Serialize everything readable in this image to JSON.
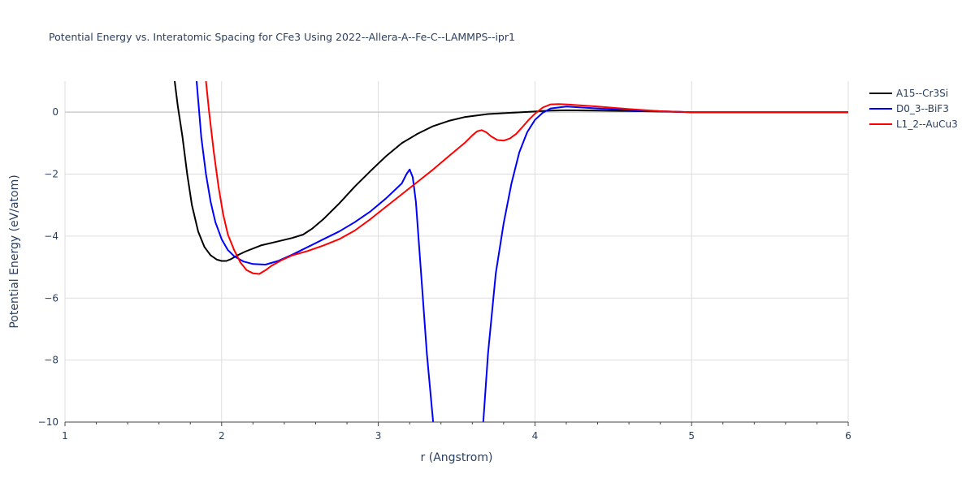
{
  "chart_data": {
    "type": "line",
    "title": "Potential Energy vs. Interatomic Spacing for CFe3 Using 2022--Allera-A--Fe-C--LAMMPS--ipr1",
    "xlabel": "r (Angstrom)",
    "ylabel": "Potential Energy (eV/atom)",
    "xlim": [
      1,
      6
    ],
    "ylim": [
      -10,
      1
    ],
    "xticks": [
      1,
      2,
      3,
      4,
      5,
      6
    ],
    "yticks": [
      0,
      -2,
      -4,
      -6,
      -8,
      -10
    ],
    "xtick_labels": [
      "1",
      "2",
      "3",
      "4",
      "5",
      "6"
    ],
    "ytick_labels": [
      "0",
      "−2",
      "−4",
      "−6",
      "−8",
      "−10"
    ],
    "grid": true,
    "legend_position": "right",
    "series": [
      {
        "name": "A15--Cr3Si",
        "color": "#000000",
        "x": [
          1.7,
          1.72,
          1.75,
          1.78,
          1.81,
          1.85,
          1.89,
          1.93,
          1.97,
          2.0,
          2.03,
          2.06,
          2.1,
          2.15,
          2.25,
          2.35,
          2.45,
          2.52,
          2.58,
          2.65,
          2.75,
          2.85,
          2.95,
          3.05,
          3.15,
          3.25,
          3.35,
          3.45,
          3.55,
          3.7,
          3.85,
          4.0,
          4.05,
          4.1,
          4.2,
          4.4,
          4.6,
          4.8,
          5.0,
          5.5,
          6.0
        ],
        "y": [
          1.0,
          0.2,
          -0.8,
          -2.0,
          -3.0,
          -3.85,
          -4.35,
          -4.62,
          -4.76,
          -4.8,
          -4.8,
          -4.74,
          -4.62,
          -4.5,
          -4.3,
          -4.18,
          -4.06,
          -3.95,
          -3.75,
          -3.45,
          -2.95,
          -2.4,
          -1.9,
          -1.42,
          -1.0,
          -0.7,
          -0.45,
          -0.28,
          -0.16,
          -0.06,
          -0.02,
          0.02,
          0.04,
          0.05,
          0.06,
          0.05,
          0.04,
          0.02,
          0.0,
          0.0,
          0.0
        ]
      },
      {
        "name": "D0_3--BiF3",
        "color": "#0000ff",
        "x": [
          1.84,
          1.87,
          1.9,
          1.93,
          1.96,
          2.0,
          2.04,
          2.08,
          2.14,
          2.2,
          2.28,
          2.36,
          2.45,
          2.55,
          2.65,
          2.75,
          2.85,
          2.95,
          3.05,
          3.15,
          3.18,
          3.2,
          3.22,
          3.24,
          3.27,
          3.31,
          3.35,
          3.36,
          3.66,
          3.67,
          3.7,
          3.75,
          3.8,
          3.85,
          3.9,
          3.95,
          4.0,
          4.05,
          4.1,
          4.2,
          4.4,
          4.6,
          4.8,
          5.0,
          5.5,
          6.0
        ],
        "y": [
          1.0,
          -0.8,
          -2.0,
          -2.9,
          -3.55,
          -4.1,
          -4.45,
          -4.65,
          -4.82,
          -4.9,
          -4.92,
          -4.8,
          -4.6,
          -4.35,
          -4.1,
          -3.85,
          -3.55,
          -3.2,
          -2.78,
          -2.3,
          -2.0,
          -1.85,
          -2.1,
          -2.9,
          -5.0,
          -7.8,
          -10.0,
          -10.4,
          -10.4,
          -10.0,
          -7.8,
          -5.2,
          -3.6,
          -2.3,
          -1.3,
          -0.65,
          -0.25,
          -0.02,
          0.12,
          0.18,
          0.12,
          0.07,
          0.03,
          0.0,
          0.0,
          0.0
        ]
      },
      {
        "name": "L1_2--AuCu3",
        "color": "#ff0000",
        "x": [
          1.9,
          1.92,
          1.95,
          1.98,
          2.01,
          2.04,
          2.08,
          2.12,
          2.16,
          2.2,
          2.24,
          2.28,
          2.32,
          2.38,
          2.45,
          2.55,
          2.65,
          2.75,
          2.85,
          2.95,
          3.05,
          3.15,
          3.25,
          3.35,
          3.45,
          3.55,
          3.6,
          3.63,
          3.66,
          3.69,
          3.72,
          3.76,
          3.8,
          3.84,
          3.88,
          3.92,
          3.96,
          4.0,
          4.05,
          4.1,
          4.15,
          4.2,
          4.4,
          4.6,
          4.8,
          5.0,
          5.5,
          6.0
        ],
        "y": [
          1.0,
          0.0,
          -1.3,
          -2.4,
          -3.3,
          -3.95,
          -4.45,
          -4.85,
          -5.1,
          -5.2,
          -5.22,
          -5.1,
          -4.95,
          -4.78,
          -4.62,
          -4.48,
          -4.3,
          -4.1,
          -3.82,
          -3.45,
          -3.05,
          -2.65,
          -2.25,
          -1.85,
          -1.42,
          -1.0,
          -0.75,
          -0.62,
          -0.58,
          -0.65,
          -0.78,
          -0.9,
          -0.92,
          -0.85,
          -0.7,
          -0.48,
          -0.25,
          -0.05,
          0.15,
          0.25,
          0.26,
          0.25,
          0.18,
          0.1,
          0.03,
          0.0,
          0.0,
          0.0
        ]
      }
    ]
  }
}
